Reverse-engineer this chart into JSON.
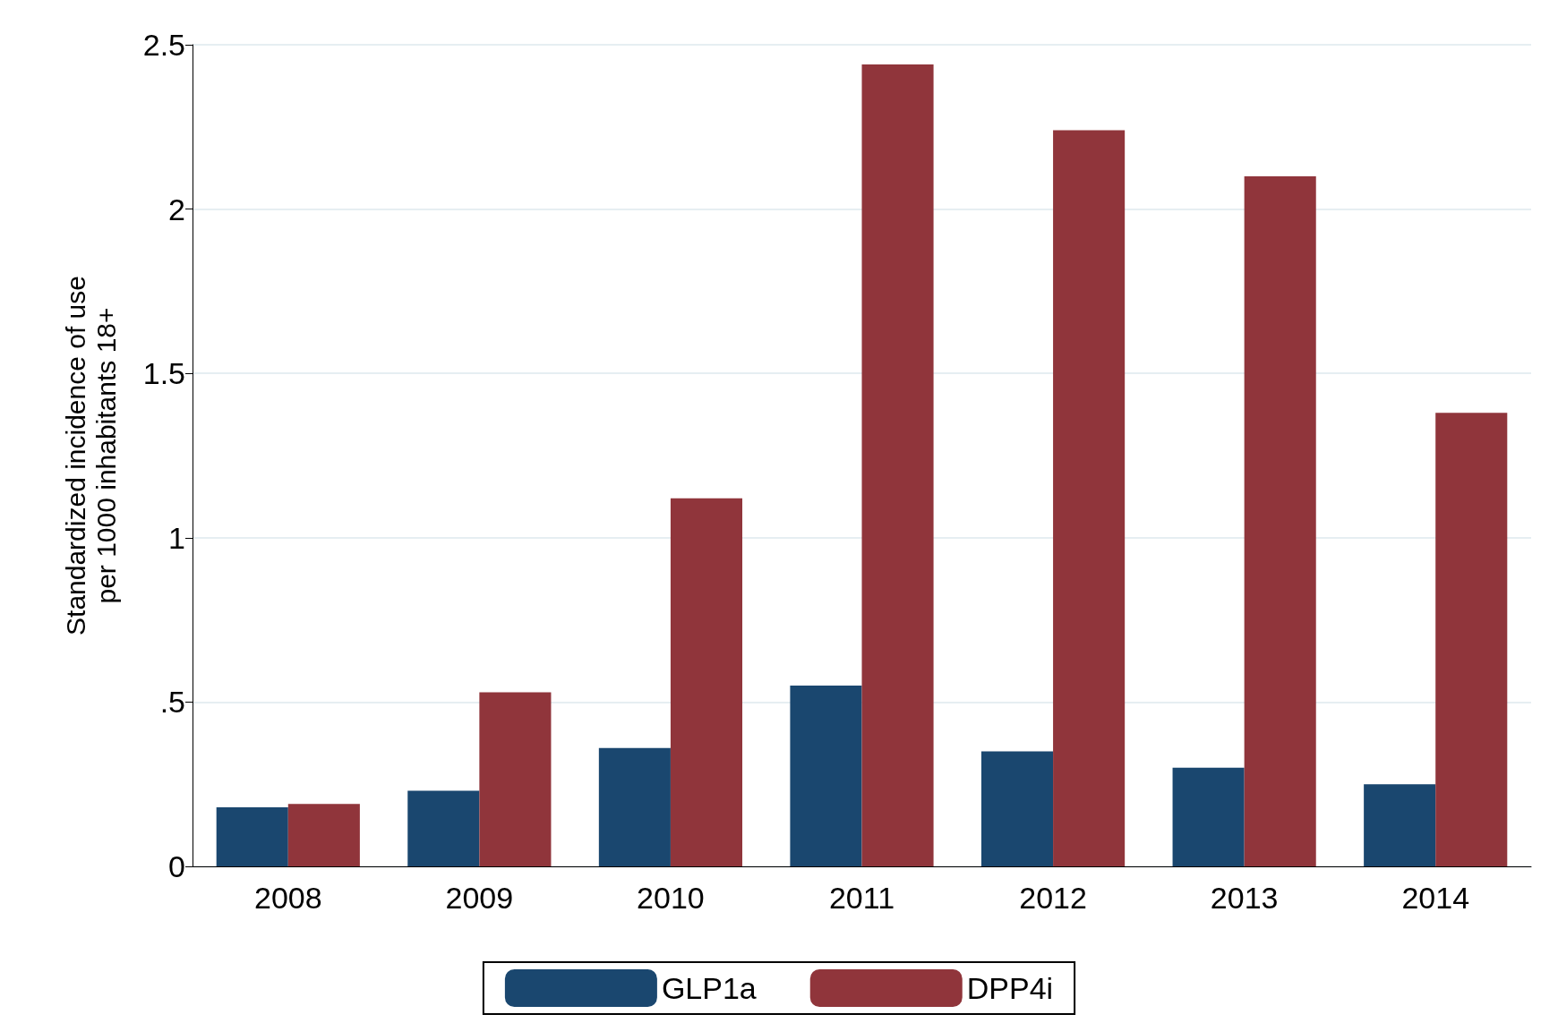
{
  "chart_data": {
    "type": "bar",
    "ylabel": "Standardized incidence of use\nper 1000 inhabitants 18+",
    "categories": [
      "2008",
      "2009",
      "2010",
      "2011",
      "2012",
      "2013",
      "2014"
    ],
    "series": [
      {
        "name": "GLP1a",
        "color": "#1a476f",
        "values": [
          0.18,
          0.23,
          0.36,
          0.55,
          0.35,
          0.3,
          0.25
        ]
      },
      {
        "name": "DPP4i",
        "color": "#90353b",
        "values": [
          0.19,
          0.53,
          1.12,
          2.44,
          2.24,
          2.1,
          1.38
        ]
      }
    ],
    "ylim": [
      0,
      2.5
    ],
    "yticks": [
      0,
      {
        "value": 0.5,
        "label": ".5"
      },
      1,
      1.5,
      2,
      2.5
    ],
    "grid": "y",
    "legend": "bottom"
  }
}
